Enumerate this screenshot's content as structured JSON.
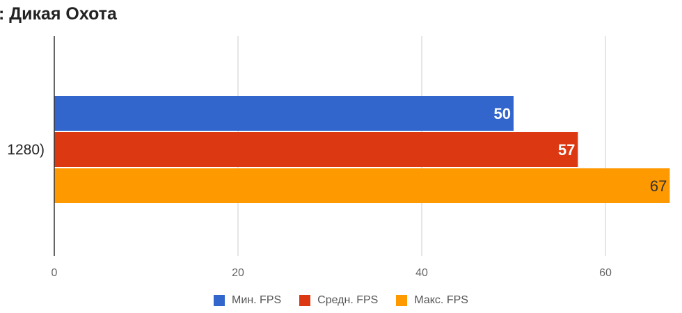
{
  "chart_data": {
    "type": "bar",
    "orientation": "horizontal",
    "title": ": Дикая Охота",
    "categories": [
      "1280)"
    ],
    "series": [
      {
        "name": "Мин. FPS",
        "values": [
          50
        ],
        "color": "#3366cc",
        "label_color": "#ffffff"
      },
      {
        "name": "Средн. FPS",
        "values": [
          57
        ],
        "color": "#dc3912",
        "label_color": "#ffffff"
      },
      {
        "name": "Макс. FPS",
        "values": [
          67
        ],
        "color": "#ff9900",
        "label_color": "#333333"
      }
    ],
    "xlim": [
      0,
      67
    ],
    "x_ticks": [
      "0",
      "20",
      "40",
      "60"
    ],
    "x_tick_values": [
      0,
      20,
      40,
      60
    ],
    "grid": true,
    "legend_position": "bottom"
  }
}
